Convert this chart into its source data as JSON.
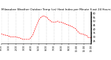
{
  "title": "Milwaukee Weather Outdoor Temp (vs) Heat Index per Minute (Last 24 Hours)",
  "line_color": "#ff0000",
  "background_color": "#ffffff",
  "grid_color": "#888888",
  "ylim": [
    22,
    62
  ],
  "y_ticks": [
    25,
    30,
    35,
    40,
    45,
    50,
    55,
    60
  ],
  "title_fontsize": 3.0,
  "tick_fontsize": 2.5,
  "line_width": 0.55,
  "x_values": [
    0,
    1,
    2,
    3,
    4,
    5,
    6,
    7,
    8,
    9,
    10,
    11,
    12,
    13,
    14,
    15,
    16,
    17,
    18,
    19,
    20,
    21,
    22,
    23,
    24,
    25,
    26,
    27,
    28,
    29,
    30,
    31,
    32,
    33,
    34,
    35,
    36,
    37,
    38,
    39,
    40,
    41,
    42,
    43,
    44,
    45,
    46,
    47,
    48,
    49,
    50,
    51,
    52,
    53,
    54,
    55,
    56,
    57,
    58,
    59,
    60,
    61,
    62,
    63,
    64,
    65,
    66,
    67,
    68,
    69,
    70,
    71,
    72,
    73,
    74,
    75,
    76,
    77,
    78,
    79,
    80,
    81,
    82,
    83,
    84,
    85,
    86,
    87,
    88,
    89,
    90,
    91,
    92,
    93,
    94,
    95,
    96,
    97,
    98,
    99,
    100,
    101,
    102,
    103,
    104,
    105,
    106,
    107,
    108,
    109,
    110,
    111,
    112,
    113,
    114,
    115,
    116,
    117,
    118,
    119,
    120,
    121,
    122,
    123,
    124,
    125,
    126,
    127,
    128,
    129,
    130,
    131,
    132,
    133,
    134,
    135,
    136,
    137,
    138,
    139,
    140,
    141,
    142,
    143
  ],
  "y_values": [
    34,
    34,
    33,
    33,
    33,
    33,
    33,
    32,
    32,
    32,
    32,
    31,
    31,
    31,
    30,
    30,
    30,
    30,
    30,
    30,
    30,
    30,
    30,
    30,
    30,
    30,
    29,
    29,
    29,
    29,
    29,
    28,
    28,
    28,
    27,
    27,
    27,
    27,
    27,
    27,
    27,
    27,
    27,
    27,
    27,
    27,
    28,
    29,
    30,
    31,
    32,
    34,
    36,
    38,
    40,
    42,
    44,
    46,
    48,
    50,
    52,
    53,
    54,
    55,
    55,
    56,
    57,
    57,
    57,
    56,
    56,
    56,
    55,
    55,
    54,
    53,
    52,
    52,
    51,
    50,
    50,
    49,
    49,
    49,
    49,
    49,
    49,
    49,
    50,
    50,
    50,
    50,
    49,
    49,
    49,
    49,
    49,
    48,
    48,
    48,
    48,
    47,
    47,
    46,
    46,
    46,
    46,
    45,
    45,
    45,
    44,
    44,
    44,
    43,
    43,
    42,
    42,
    41,
    41,
    40,
    39,
    38,
    37,
    36,
    35,
    35,
    34,
    34,
    34,
    34,
    34,
    33,
    33,
    33,
    32,
    32,
    32,
    31,
    30,
    29,
    29,
    29,
    29,
    29
  ],
  "x_tick_positions": [
    0,
    12,
    24,
    36,
    48,
    60,
    72,
    84,
    96,
    108,
    120,
    132,
    143
  ],
  "x_tick_labels": [
    "0:00",
    "1:00",
    "2:00",
    "3:00",
    "4:00",
    "5:00",
    "6:00",
    "7:00",
    "8:00",
    "9:00",
    "10:00",
    "11:00",
    "12:00"
  ]
}
